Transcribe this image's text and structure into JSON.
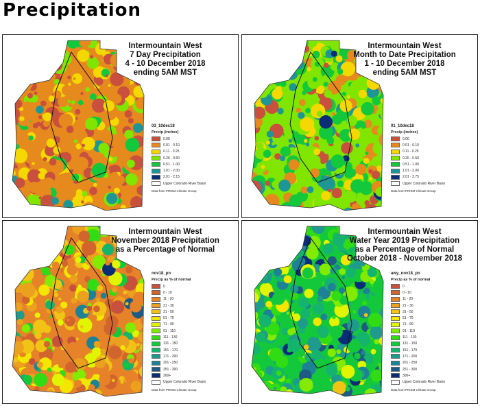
{
  "page_title": "Precipitation",
  "basin_label": "Upper Colorado River Basin",
  "source": "Data from PRISM Climate Group",
  "panels": [
    {
      "title": [
        "Intermountain West",
        "7 Day Precipitation",
        "4 - 10 December 2018",
        "ending 5AM MST"
      ],
      "layer": "03_10dec18",
      "legend_title": "Precip (inches)",
      "classes": [
        {
          "label": "0.00",
          "color": "#c8503c"
        },
        {
          "label": "0.01 - 0.10",
          "color": "#e68a1e"
        },
        {
          "label": "0.11 - 0.25",
          "color": "#f5d800"
        },
        {
          "label": "0.26 - 0.50",
          "color": "#80e600"
        },
        {
          "label": "0.51 - 1.00",
          "color": "#14c83c"
        },
        {
          "label": "1.01 - 2.00",
          "color": "#1e9696"
        },
        {
          "label": "2.01 - 2.15",
          "color": "#0a2d78"
        }
      ],
      "mix": [
        4,
        6,
        3,
        2,
        1,
        0.3,
        0
      ]
    },
    {
      "title": [
        "Intermountain West",
        "Month to Date Precipitation",
        "1 - 10 December 2018",
        "ending 5AM MST"
      ],
      "layer": "01_10dec18",
      "legend_title": "Precip (inches)",
      "classes": [
        {
          "label": "0.00",
          "color": "#c8503c"
        },
        {
          "label": "0.01 - 0.10",
          "color": "#e68a1e"
        },
        {
          "label": "0.11 - 0.25",
          "color": "#f5d800"
        },
        {
          "label": "0.26 - 0.50",
          "color": "#80e600"
        },
        {
          "label": "0.51 - 1.00",
          "color": "#14c83c"
        },
        {
          "label": "1.01 - 2.00",
          "color": "#1e9696"
        },
        {
          "label": "2.01 - 2.75",
          "color": "#0a2d78"
        }
      ],
      "mix": [
        1,
        2,
        2,
        4,
        4,
        2,
        0.3
      ]
    },
    {
      "title": [
        "Intermountain West",
        "November 2018 Precipitation",
        "as a Percentage of Normal"
      ],
      "layer": "nov18_pn",
      "legend_title": "Precip as % of normal",
      "classes": [
        {
          "label": "0",
          "color": "#c8503c"
        },
        {
          "label": "0 - 10",
          "color": "#d2642d"
        },
        {
          "label": "11 - 20",
          "color": "#e68228"
        },
        {
          "label": "21 - 30",
          "color": "#eba01e"
        },
        {
          "label": "31 - 50",
          "color": "#f0c314"
        },
        {
          "label": "51 - 70",
          "color": "#f5e600"
        },
        {
          "label": "71 - 90",
          "color": "#e1f500"
        },
        {
          "label": "91 - 110",
          "color": "#82eb00"
        },
        {
          "label": "111 - 130",
          "color": "#32dc14"
        },
        {
          "label": "131 - 150",
          "color": "#14c83c"
        },
        {
          "label": "151 - 170",
          "color": "#14b46e"
        },
        {
          "label": "171 - 200",
          "color": "#1e9b8c"
        },
        {
          "label": "201 - 250",
          "color": "#1e8296"
        },
        {
          "label": "251 - 300",
          "color": "#1e5a82"
        },
        {
          "label": "300+",
          "color": "#0a2d78"
        }
      ],
      "mix": [
        0.5,
        2,
        4,
        4,
        3,
        2,
        1,
        1.5,
        1,
        1,
        0.6,
        0.4,
        0.3,
        0.2,
        0.1
      ]
    },
    {
      "title": [
        "Intermountain West",
        "Water Year 2019 Precipitation",
        "as a Percentage of Normal",
        "October 2018 - November 2018"
      ],
      "layer": "awy_nov18_pn",
      "legend_title": "Precip as % of normal",
      "classes": [
        {
          "label": "0",
          "color": "#c8503c"
        },
        {
          "label": "0 - 10",
          "color": "#d2642d"
        },
        {
          "label": "11 - 20",
          "color": "#e68228"
        },
        {
          "label": "21 - 30",
          "color": "#eba01e"
        },
        {
          "label": "31 - 50",
          "color": "#f0c314"
        },
        {
          "label": "51 - 70",
          "color": "#f5e600"
        },
        {
          "label": "71 - 90",
          "color": "#e1f500"
        },
        {
          "label": "91 - 110",
          "color": "#82eb00"
        },
        {
          "label": "111 - 130",
          "color": "#32dc14"
        },
        {
          "label": "131 - 150",
          "color": "#14c83c"
        },
        {
          "label": "151 - 170",
          "color": "#14b46e"
        },
        {
          "label": "171 - 200",
          "color": "#1e9b8c"
        },
        {
          "label": "201 - 250",
          "color": "#1e8296"
        },
        {
          "label": "251 - 300",
          "color": "#1e5a82"
        },
        {
          "label": "300+",
          "color": "#0a2d78"
        }
      ],
      "mix": [
        0,
        0,
        0,
        0,
        0.2,
        0.6,
        1,
        2,
        2,
        2.5,
        1.5,
        1.5,
        1.2,
        0.8,
        0.5
      ]
    }
  ]
}
